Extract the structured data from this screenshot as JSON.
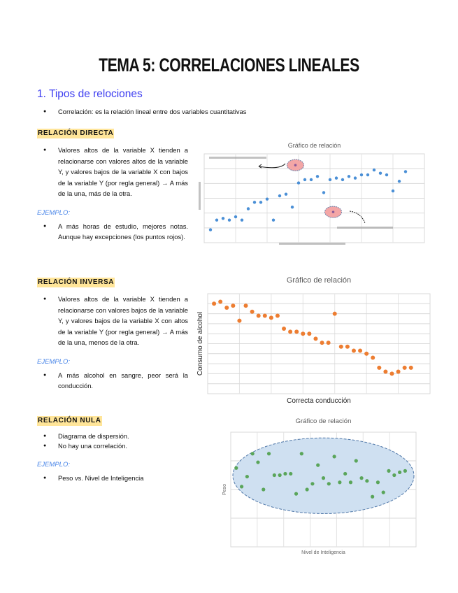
{
  "document": {
    "title": "TEMA 5: CORRELACIONES LINEALES",
    "section_heading": "1. Tipos de relociones",
    "intro_bullet": "Correlación: es la relación lineal entre dos variables cuantitativas",
    "sections": [
      {
        "tag": "RELACIÓN DIRECTA",
        "bullets": [
          "Valores altos de la variable X tienden a relacionarse con valores altos de la variable Y, y valores bajos de la variable X con bajos de la variable Y (por regla general) → A más de la una, más de la otra."
        ],
        "example_label": "EJEMPLO:",
        "example_bullets": [
          "A más horas de estudio, mejores notas. Aunque hay excepciones (los puntos rojos)."
        ]
      },
      {
        "tag": "RELACIÓN INVERSA",
        "bullets": [
          "Valores altos de la variable X tienden a relacionarse con valores bajos de la variable Y, y valores bajos de la variable X con altos de la variable Y (por regla general) → A más de la una, menos de la otra."
        ],
        "example_label": "EJEMPLO:",
        "example_bullets": [
          "A más alcohol en sangre, peor será la conducción."
        ]
      },
      {
        "tag": "RELACIÓN NULA",
        "bullets": [
          "Diagrama de dispersión.",
          "No hay una correlación."
        ],
        "example_label": "EJEMPLO:",
        "example_bullets": [
          "Peso vs. Nivel de Inteligencia"
        ]
      }
    ]
  },
  "chart_data": [
    {
      "type": "scatter",
      "title": "Gráfico de relación",
      "xlabel": "",
      "ylabel": "",
      "color": "#4a8fd6",
      "outlier_color": "#f4a6a6",
      "annotations": [
        "",
        ""
      ],
      "grid": true,
      "x": [
        1,
        2,
        3,
        4,
        5,
        6,
        7,
        8,
        9,
        10,
        11,
        12,
        13,
        14,
        15,
        16,
        17,
        18,
        19,
        20,
        21,
        22,
        23,
        24,
        25,
        26,
        27,
        28,
        29,
        30,
        31,
        32
      ],
      "y": [
        8,
        14,
        15,
        14,
        16,
        14,
        21,
        25,
        25,
        27,
        14,
        29,
        30,
        22,
        37,
        39,
        39,
        41,
        31,
        39,
        40,
        39,
        41,
        40,
        42,
        42,
        45,
        43,
        42,
        32,
        38,
        44
      ],
      "outliers": [
        {
          "x": 14.5,
          "y": 48
        },
        {
          "x": 20.5,
          "y": 19
        }
      ]
    },
    {
      "type": "scatter",
      "title": "Gráfico de relación",
      "xlabel": "Correcta conducción",
      "ylabel": "Consumo de alcohol",
      "color": "#ed7d31",
      "grid": true,
      "x": [
        1,
        2,
        3,
        4,
        5,
        6,
        7,
        8,
        9,
        10,
        11,
        12,
        13,
        14,
        15,
        16,
        17,
        18,
        19,
        20,
        21,
        22,
        23,
        24,
        25,
        26,
        27,
        28,
        29,
        30,
        31,
        32
      ],
      "y": [
        9.0,
        9.2,
        8.6,
        8.8,
        7.3,
        8.8,
        8.2,
        7.8,
        7.8,
        7.6,
        7.8,
        6.5,
        6.2,
        6.2,
        6.0,
        6.0,
        5.5,
        5.1,
        5.1,
        8.0,
        4.7,
        4.7,
        4.3,
        4.3,
        4.0,
        3.6,
        2.6,
        2.2,
        2.0,
        2.2,
        2.6,
        2.6
      ],
      "ylim": [
        0,
        10
      ],
      "xlim": [
        0,
        35
      ]
    },
    {
      "type": "scatter",
      "title": "Gráfico de relación",
      "xlabel": "Nivel de Inteligencia",
      "ylabel": "Peso",
      "color": "#5aa55a",
      "ellipse_color": "#cfe0f1",
      "grid": true,
      "x": [
        1,
        2,
        3,
        4,
        5,
        6,
        7,
        8,
        9,
        10,
        11,
        12,
        13,
        14,
        15,
        16,
        17,
        18,
        19,
        20,
        21,
        22,
        23,
        24,
        25,
        26,
        27,
        28,
        29,
        30,
        31,
        32
      ],
      "y": [
        5.5,
        4.2,
        4.9,
        6.5,
        5.9,
        4.0,
        6.5,
        5.0,
        5.0,
        5.1,
        5.1,
        3.7,
        6.5,
        4.0,
        4.4,
        5.7,
        4.8,
        4.4,
        6.3,
        4.5,
        5.1,
        4.5,
        6.0,
        4.8,
        4.6,
        3.5,
        4.5,
        3.8,
        5.3,
        5.0,
        5.2,
        5.3
      ],
      "ylim": [
        0,
        8
      ],
      "xlim": [
        0,
        34
      ]
    }
  ]
}
